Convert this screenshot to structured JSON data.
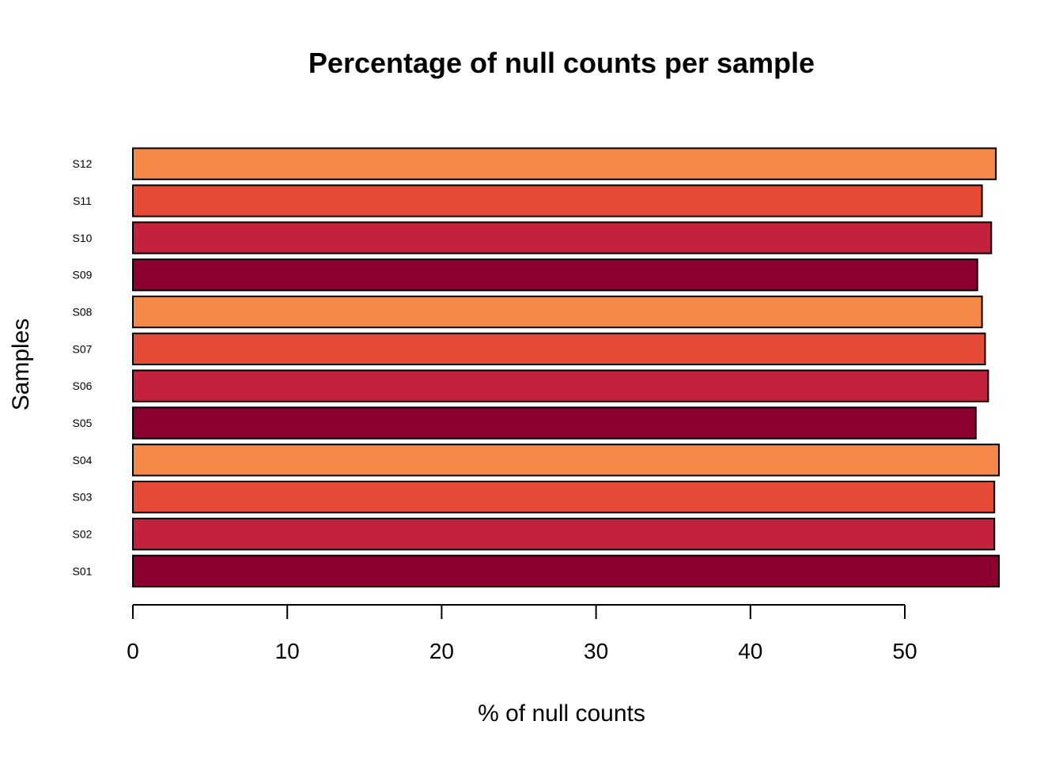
{
  "chart_data": {
    "type": "bar",
    "orientation": "horizontal",
    "title": "Percentage of null counts per sample",
    "xlabel": "% of null counts",
    "ylabel": "Samples",
    "xlim": [
      0,
      56.5
    ],
    "x_ticks": [
      0,
      10,
      20,
      30,
      40,
      50
    ],
    "categories": [
      "S01",
      "S02",
      "S03",
      "S04",
      "S05",
      "S06",
      "S07",
      "S08",
      "S09",
      "S10",
      "S11",
      "S12"
    ],
    "values": [
      56.1,
      55.8,
      55.8,
      56.1,
      54.6,
      55.4,
      55.2,
      55.0,
      54.7,
      55.6,
      55.0,
      55.9
    ],
    "colors": [
      "#8B0030",
      "#C4213F",
      "#E54B37",
      "#F5894A",
      "#8B0030",
      "#C4213F",
      "#E54B37",
      "#F5894A",
      "#8B0030",
      "#C4213F",
      "#E54B37",
      "#F5894A"
    ],
    "bar_border": "#000000",
    "grid": false,
    "legend": "none"
  }
}
